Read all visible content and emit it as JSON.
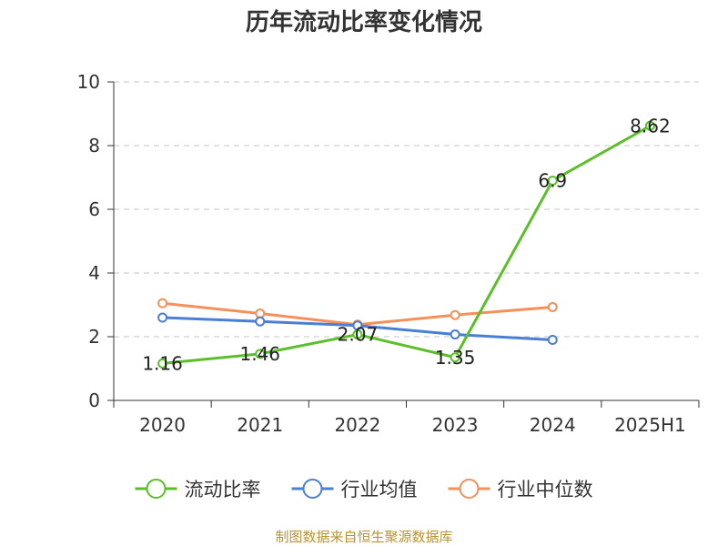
{
  "chart_data": {
    "type": "line",
    "title": "历年流动比率变化情况",
    "xlabel": "",
    "ylabel": "",
    "categories": [
      "2020",
      "2021",
      "2022",
      "2023",
      "2024",
      "2025H1"
    ],
    "ylim": [
      0,
      10
    ],
    "yticks": [
      "0",
      "2",
      "4",
      "6",
      "8",
      "10"
    ],
    "grid": true,
    "legend_position": "bottom",
    "series": [
      {
        "name": "流动比率",
        "color": "#5bbf2a",
        "values": [
          1.16,
          1.46,
          2.07,
          1.35,
          6.9,
          8.62
        ],
        "labels": [
          "1.16",
          "1.46",
          "2.07",
          "1.35",
          "6.9",
          "8.62"
        ]
      },
      {
        "name": "行业均值",
        "color": "#4a7fd6",
        "values": [
          2.6,
          2.48,
          2.35,
          2.07,
          1.9,
          null
        ]
      },
      {
        "name": "行业中位数",
        "color": "#f5905a",
        "values": [
          3.05,
          2.73,
          2.38,
          2.68,
          2.93,
          null
        ]
      }
    ]
  },
  "source_text": "制图数据来自恒生聚源数据库"
}
